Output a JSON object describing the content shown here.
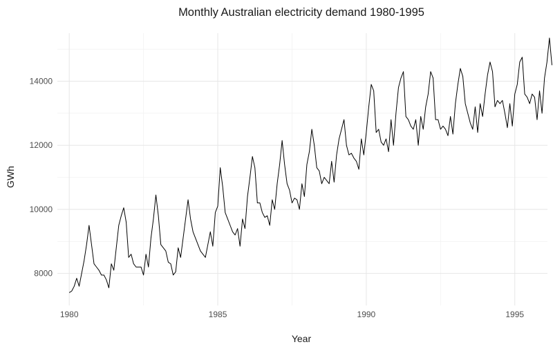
{
  "chart_data": {
    "type": "line",
    "title": "Monthly Australian electricity demand 1980-1995",
    "xlabel": "Year",
    "ylabel": "GWh",
    "xlim": [
      1979.6,
      1996.1
    ],
    "ylim": [
      7000,
      15500
    ],
    "x_ticks": [
      1980,
      1985,
      1990,
      1995
    ],
    "x_tick_labels": [
      "1980",
      "1985",
      "1990",
      "1995"
    ],
    "y_ticks": [
      8000,
      10000,
      12000,
      14000
    ],
    "y_tick_labels": [
      "8000",
      "10000",
      "12000",
      "14000"
    ],
    "grid": true,
    "legend": "none",
    "line_color": "#000000",
    "series": [
      {
        "x_start": 1980.0,
        "x_step": 0.08333333,
        "values": [
          7400,
          7450,
          7600,
          7850,
          7600,
          8000,
          8400,
          8900,
          9500,
          8900,
          8300,
          8200,
          8100,
          7950,
          7950,
          7800,
          7550,
          8300,
          8100,
          8800,
          9500,
          9800,
          10050,
          9600,
          8500,
          8600,
          8300,
          8200,
          8200,
          8200,
          7950,
          8600,
          8200,
          9100,
          9700,
          10450,
          9800,
          8900,
          8800,
          8700,
          8350,
          8300,
          7950,
          8050,
          8800,
          8500,
          9100,
          9700,
          10300,
          9700,
          9300,
          9100,
          8900,
          8700,
          8600,
          8500,
          8900,
          9300,
          8850,
          9900,
          10100,
          11300,
          10700,
          9900,
          9700,
          9500,
          9300,
          9200,
          9400,
          8850,
          9700,
          9400,
          10400,
          11000,
          11650,
          11300,
          10200,
          10200,
          9900,
          9750,
          9800,
          9500,
          10300,
          10000,
          10800,
          11400,
          12150,
          11400,
          10800,
          10600,
          10200,
          10350,
          10300,
          10000,
          10800,
          10400,
          11400,
          11800,
          12500,
          12000,
          11300,
          11200,
          10800,
          11000,
          10900,
          10800,
          11500,
          10850,
          11700,
          12200,
          12500,
          12800,
          12000,
          11700,
          11750,
          11600,
          11500,
          11250,
          12200,
          11700,
          12400,
          13200,
          13900,
          13700,
          12400,
          12500,
          12100,
          12000,
          12200,
          11800,
          12800,
          12000,
          13000,
          13800,
          14100,
          14300,
          12900,
          12800,
          12600,
          12500,
          12800,
          12000,
          12900,
          12500,
          13200,
          13600,
          14300,
          14100,
          12800,
          12800,
          12500,
          12600,
          12500,
          12300,
          12900,
          12350,
          13300,
          13900,
          14400,
          14150,
          13300,
          13000,
          12700,
          12500,
          13200,
          12400,
          13300,
          12900,
          13600,
          14200,
          14600,
          14300,
          13200,
          13400,
          13300,
          13400,
          13000,
          12550,
          13300,
          12600,
          13600,
          13900,
          14600,
          14750,
          13600,
          13500,
          13300,
          13600,
          13500,
          12800,
          13700,
          13000,
          14100,
          14600,
          15350,
          14500
        ]
      }
    ]
  }
}
